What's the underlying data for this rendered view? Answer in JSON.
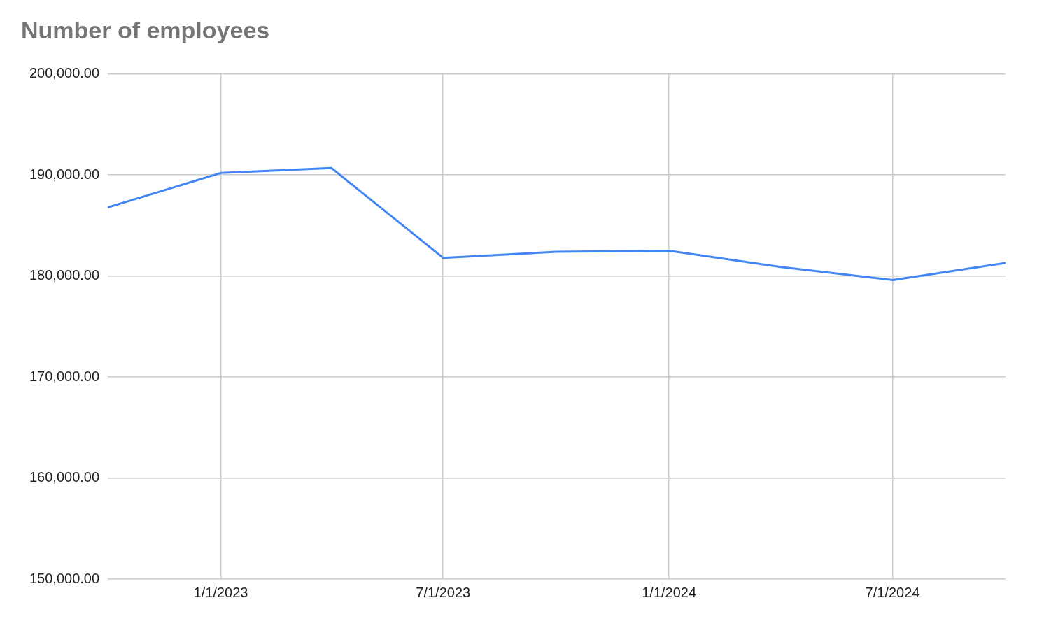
{
  "chart_data": {
    "type": "line",
    "title": "Number of employees",
    "x": [
      "2022-10-01",
      "2023-01-01",
      "2023-04-01",
      "2023-07-01",
      "2023-10-01",
      "2024-01-01",
      "2024-04-01",
      "2024-07-01",
      "2024-10-01"
    ],
    "series": [
      {
        "color": "#4285f4",
        "values": [
          186800,
          190200,
          190700,
          181800,
          182400,
          182500,
          180900,
          179600,
          181300
        ]
      }
    ],
    "xlim": [
      "2022-10-01",
      "2024-10-01"
    ],
    "xticks": [
      {
        "value": "2023-01-01",
        "label": "1/1/2023"
      },
      {
        "value": "2023-07-01",
        "label": "7/1/2023"
      },
      {
        "value": "2024-01-01",
        "label": "1/1/2024"
      },
      {
        "value": "2024-07-01",
        "label": "7/1/2024"
      }
    ],
    "ylim": [
      150000,
      200000
    ],
    "yticks": [
      {
        "value": 150000,
        "label": "150,000.00"
      },
      {
        "value": 160000,
        "label": "160,000.00"
      },
      {
        "value": 170000,
        "label": "170,000.00"
      },
      {
        "value": 180000,
        "label": "180,000.00"
      },
      {
        "value": 190000,
        "label": "190,000.00"
      },
      {
        "value": 200000,
        "label": "200,000.00"
      }
    ],
    "grid": true,
    "legend": false,
    "marker": "none",
    "line_style": "solid"
  }
}
